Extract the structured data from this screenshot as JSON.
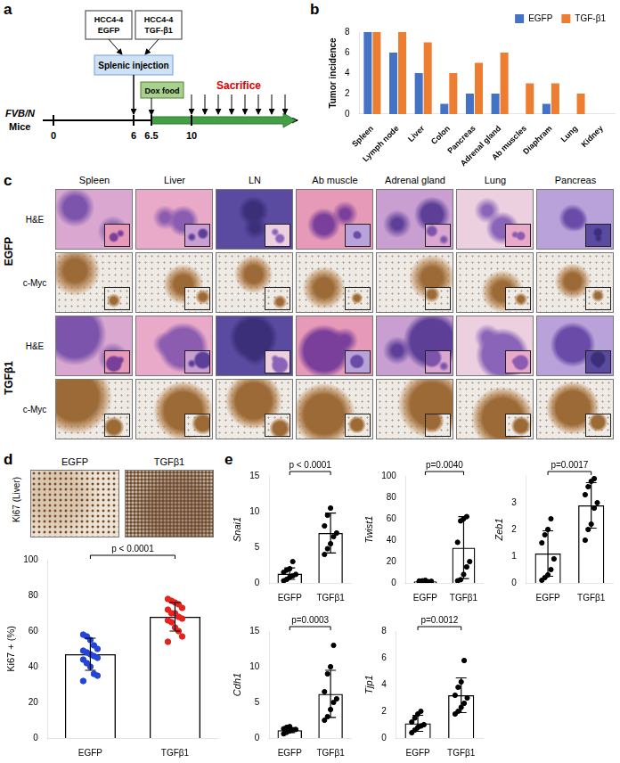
{
  "panel_labels": [
    "a",
    "b",
    "c",
    "d",
    "e"
  ],
  "diagram": {
    "strain": "FVB/N",
    "subject": "Mice",
    "timeline": [
      0,
      6,
      6.5,
      10
    ],
    "cells": [
      [
        "HCC4-4",
        "EGFP"
      ],
      [
        "HCC4-4",
        "TGF-β1"
      ]
    ],
    "injection": "Splenic injection",
    "diet": "Dox food",
    "endpoint": "Sacrifice"
  },
  "histology": {
    "columns": [
      "Spleen",
      "Liver",
      "LN",
      "Ab muscle",
      "Adrenal gland",
      "Lung",
      "Pancreas"
    ],
    "groups": [
      {
        "name": "EGFP",
        "rows": [
          "H&E",
          "c-Myc"
        ]
      },
      {
        "name": "TGFβ1",
        "rows": [
          "H&E",
          "c-Myc"
        ]
      }
    ]
  },
  "ki67_images": {
    "title": "Ki67 (Liver)",
    "labels": [
      "EGFP",
      "TGFβ1"
    ]
  },
  "chart_data": [
    {
      "type": "bar",
      "categories": [
        "Spleen",
        "Lymph node",
        "Liver",
        "Colon",
        "Pancreas",
        "Adrenal gland",
        "Ab muscles",
        "Diaphram",
        "Lung",
        "Kidney"
      ],
      "series": [
        {
          "name": "EGFP",
          "color": "#4472c4",
          "values": [
            8,
            6,
            4,
            1,
            2,
            2,
            0,
            1,
            0,
            0
          ]
        },
        {
          "name": "TGF-β1",
          "color": "#ed7d31",
          "values": [
            8,
            8,
            7,
            4,
            5,
            6,
            3,
            3,
            2,
            0
          ]
        }
      ],
      "y_label": "Tumor incidence",
      "ylim": [
        0,
        8
      ],
      "yticks": [
        0,
        2,
        4,
        6,
        8
      ],
      "grid": false,
      "legend": "top-right"
    },
    {
      "type": "dot_bar",
      "y_label": "Ki67 + (%)",
      "categories": [
        "EGFP",
        "TGFβ1"
      ],
      "points": [
        [
          58,
          57,
          55,
          52,
          50,
          49,
          48,
          47,
          46,
          45,
          44,
          42,
          40,
          36,
          35,
          32
        ],
        [
          78,
          77,
          76,
          75,
          73,
          72,
          70,
          70,
          68,
          67,
          66,
          65,
          62,
          60,
          57,
          54
        ]
      ],
      "values": [
        47,
        68
      ],
      "error": [
        9,
        8
      ],
      "colors": [
        "#2346d8",
        "#e8231f"
      ],
      "ylim": [
        0,
        100
      ],
      "yticks": [
        0,
        20,
        40,
        60,
        80,
        100
      ],
      "annotation": "p < 0.0001"
    },
    {
      "type": "dot_bar",
      "y_label": "Snai1",
      "categories": [
        "EGFP",
        "TGFβ1"
      ],
      "points": [
        [
          0.3,
          0.5,
          0.8,
          1.0,
          1.2,
          1.5,
          1.8,
          2.0,
          3.0
        ],
        [
          4.0,
          4.8,
          5.5,
          6.5,
          7.0,
          8.0,
          9.5,
          10.5
        ]
      ],
      "values": [
        1.3,
        7.0
      ],
      "error": [
        0.8,
        2.8
      ],
      "colors": [
        "#000000",
        "#000000"
      ],
      "ylim": [
        0,
        15
      ],
      "yticks": [
        0,
        5,
        10,
        15
      ],
      "annotation": "p < 0.0001"
    },
    {
      "type": "dot_bar",
      "y_label": "Twist1",
      "categories": [
        "EGFP",
        "TGFβ1"
      ],
      "points": [
        [
          0.5,
          0.8,
          1,
          1.2,
          1.5,
          1.8,
          2,
          2.5
        ],
        [
          2,
          3,
          8,
          15,
          20,
          38,
          58,
          60,
          62
        ]
      ],
      "values": [
        1.4,
        33
      ],
      "error": [
        0.6,
        29
      ],
      "colors": [
        "#000000",
        "#000000"
      ],
      "ylim": [
        0,
        100
      ],
      "yticks": [
        0,
        20,
        40,
        60,
        80,
        100
      ],
      "annotation": "p=0.0040"
    },
    {
      "type": "dot_bar",
      "y_label": "Zeb1",
      "categories": [
        "EGFP",
        "TGFβ1"
      ],
      "points": [
        [
          0.1,
          0.2,
          0.3,
          0.5,
          0.9,
          1.5,
          1.8,
          2.0,
          2.4
        ],
        [
          1.6,
          2.0,
          2.2,
          2.8,
          3.0,
          3.3,
          3.6,
          3.8,
          3.9
        ]
      ],
      "values": [
        1.1,
        2.9
      ],
      "error": [
        0.85,
        0.85
      ],
      "colors": [
        "#000000",
        "#000000"
      ],
      "ylim": [
        0,
        4
      ],
      "yticks": [
        0,
        1,
        2,
        3
      ],
      "annotation": "p=0.0017"
    },
    {
      "type": "dot_bar",
      "y_label": "Cdh1",
      "categories": [
        "EGFP",
        "TGFβ1"
      ],
      "points": [
        [
          0.6,
          0.8,
          1.0,
          1.1,
          1.2,
          1.3,
          1.5,
          1.6
        ],
        [
          2.5,
          3,
          4,
          5,
          5.5,
          6.5,
          9,
          10,
          13
        ]
      ],
      "values": [
        1.1,
        6.2
      ],
      "error": [
        0.35,
        3.3
      ],
      "colors": [
        "#000000",
        "#000000"
      ],
      "ylim": [
        0,
        15
      ],
      "yticks": [
        0,
        5,
        10,
        15
      ],
      "annotation": "p=0.0003"
    },
    {
      "type": "dot_bar",
      "y_label": "Tjp1",
      "categories": [
        "EGFP",
        "TGFβ1"
      ],
      "points": [
        [
          0.4,
          0.6,
          0.8,
          0.9,
          1.0,
          1.2,
          1.5,
          1.8,
          2.0
        ],
        [
          1.8,
          2.0,
          2.3,
          2.6,
          3.0,
          3.2,
          3.8,
          4.2,
          5.8
        ]
      ],
      "values": [
        1.1,
        3.2
      ],
      "error": [
        0.6,
        1.3
      ],
      "colors": [
        "#000000",
        "#000000"
      ],
      "ylim": [
        0,
        8
      ],
      "yticks": [
        0,
        2,
        4,
        6,
        8
      ],
      "annotation": "p=0.0012"
    }
  ]
}
